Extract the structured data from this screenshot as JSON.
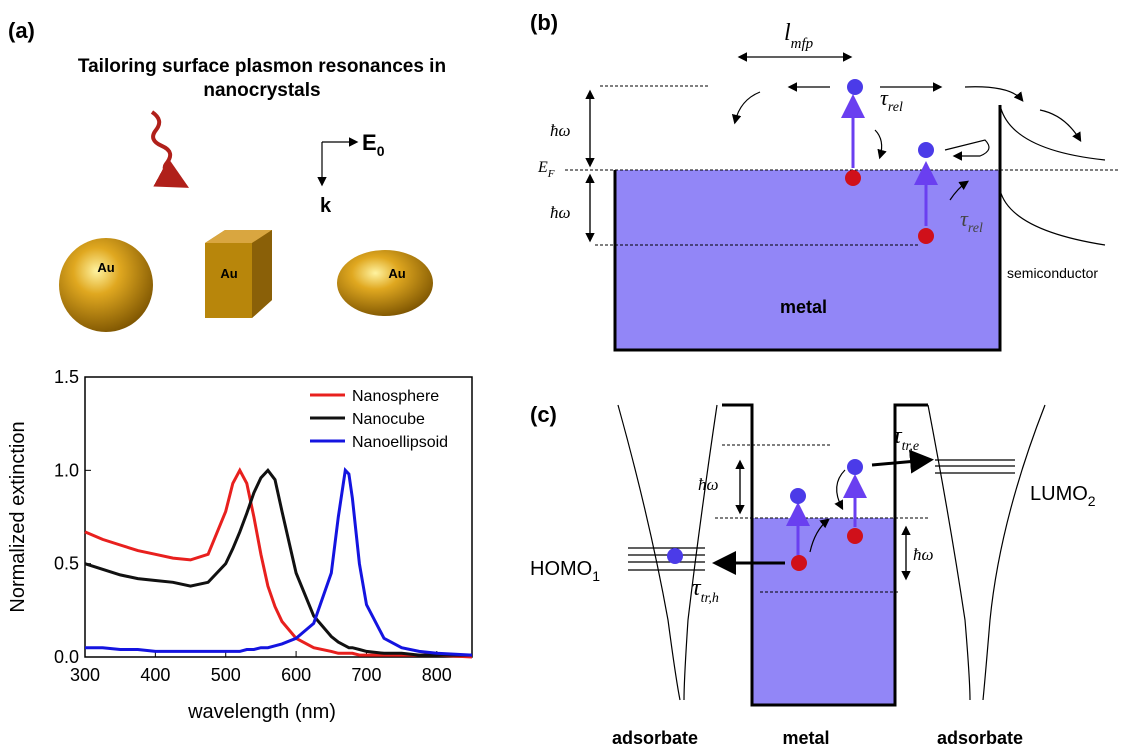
{
  "panel_a": {
    "label": "(a)",
    "title_lines": [
      "Tailoring surface plasmon resonances in",
      "nanocrystals"
    ],
    "field": {
      "main": "E",
      "sub": "0"
    },
    "wavevector": "k",
    "particles": [
      "Au",
      "Au",
      "Au"
    ]
  },
  "chart_data": {
    "type": "line",
    "xlabel": "wavelength (nm)",
    "ylabel": "Normalized extinction",
    "x": [
      300,
      325,
      350,
      375,
      400,
      425,
      450,
      475,
      500,
      510,
      520,
      530,
      540,
      550,
      560,
      570,
      580,
      600,
      625,
      650,
      660,
      670,
      675,
      680,
      690,
      700,
      725,
      750,
      775,
      800,
      850
    ],
    "series": [
      {
        "name": "Nanosphere",
        "color": "#e8201e",
        "values": [
          0.67,
          0.63,
          0.6,
          0.57,
          0.55,
          0.53,
          0.52,
          0.55,
          0.78,
          0.93,
          1.0,
          0.93,
          0.75,
          0.55,
          0.38,
          0.27,
          0.19,
          0.1,
          0.05,
          0.03,
          0.02,
          0.02,
          0.02,
          0.02,
          0.01,
          0.01,
          0.01,
          0.01,
          0.01,
          0.01,
          0.0
        ]
      },
      {
        "name": "Nanocube",
        "color": "#111111",
        "values": [
          0.5,
          0.47,
          0.44,
          0.42,
          0.41,
          0.4,
          0.38,
          0.4,
          0.5,
          0.58,
          0.67,
          0.77,
          0.88,
          0.96,
          1.0,
          0.95,
          0.78,
          0.45,
          0.22,
          0.11,
          0.08,
          0.06,
          0.05,
          0.05,
          0.04,
          0.03,
          0.02,
          0.02,
          0.01,
          0.01,
          0.01
        ]
      },
      {
        "name": "Nanoellipsoid",
        "color": "#1414e0",
        "values": [
          0.05,
          0.05,
          0.04,
          0.04,
          0.03,
          0.03,
          0.03,
          0.03,
          0.03,
          0.03,
          0.03,
          0.04,
          0.04,
          0.05,
          0.05,
          0.06,
          0.07,
          0.1,
          0.18,
          0.45,
          0.75,
          1.0,
          0.98,
          0.85,
          0.5,
          0.28,
          0.1,
          0.05,
          0.03,
          0.02,
          0.01
        ]
      }
    ],
    "xlim": [
      300,
      850
    ],
    "xticks": [
      300,
      400,
      500,
      600,
      700,
      800
    ],
    "ylim": [
      0,
      1.5
    ],
    "yticks": [
      {
        "value": 0,
        "label": "0.0"
      },
      0.5,
      {
        "value": 1,
        "label": "1.0"
      },
      1.5
    ],
    "legend": "upper right"
  },
  "panel_b": {
    "label": "(b)",
    "mfp": {
      "main": "l",
      "sub": "mfp"
    },
    "tau1": {
      "main": "τ",
      "sub": "rel"
    },
    "tau2": {
      "main": "τ",
      "sub": "rel"
    },
    "hw1": "ħω",
    "hw2": "ħω",
    "fermi": {
      "main": "E",
      "sub": "F"
    },
    "metal": "metal",
    "semiconductor": "semiconductor"
  },
  "panel_c": {
    "label": "(c)",
    "tau_e": {
      "main": "τ",
      "sub": "tr,e"
    },
    "tau_h": {
      "main": "τ",
      "sub": "tr,h"
    },
    "hw1": "ħω",
    "hw2": "ħω",
    "lumo": {
      "main": "LUMO",
      "sub": "2"
    },
    "homo": {
      "main": "HOMO",
      "sub": "1"
    },
    "bottom": [
      "adsorbate",
      "metal",
      "adsorbate"
    ]
  }
}
